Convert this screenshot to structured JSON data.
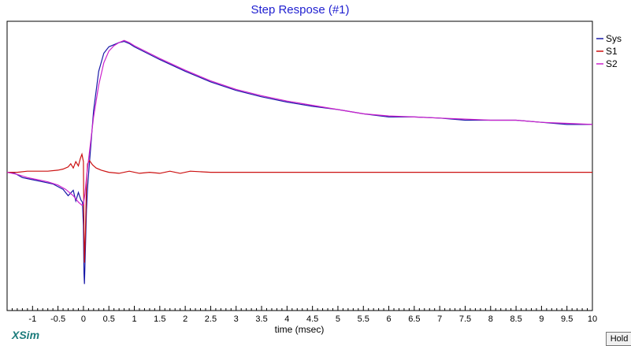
{
  "brand": "XSim",
  "hold_label": "Hold",
  "chart_data": {
    "type": "line",
    "title": "Step Respose (#1)",
    "xlabel": "time (msec)",
    "ylabel": "",
    "xlim": [
      -1.5,
      10
    ],
    "ylim": [
      -1.3,
      1.42
    ],
    "grid": false,
    "legend_position": "top-right",
    "x_ticks": [
      -1,
      -0.5,
      0,
      0.5,
      1,
      1.5,
      2,
      2.5,
      3,
      3.5,
      4,
      4.5,
      5,
      5.5,
      6,
      6.5,
      7,
      7.5,
      8,
      8.5,
      9,
      9.5,
      10
    ],
    "series": [
      {
        "name": "Sys",
        "color": "#1a1aa8",
        "x": [
          -1.5,
          -1.35,
          -1.2,
          -1.0,
          -0.8,
          -0.6,
          -0.4,
          -0.3,
          -0.2,
          -0.15,
          -0.1,
          -0.05,
          -0.02,
          0.0,
          0.01,
          0.02,
          0.04,
          0.06,
          0.08,
          0.1,
          0.15,
          0.2,
          0.3,
          0.4,
          0.5,
          0.6,
          0.7,
          0.8,
          0.9,
          1.0,
          1.25,
          1.5,
          2.0,
          2.5,
          3.0,
          3.5,
          4.0,
          4.5,
          5.0,
          5.5,
          6.0,
          6.5,
          7.0,
          7.5,
          8.0,
          8.5,
          9.0,
          9.5,
          10.0
        ],
        "y": [
          0.0,
          -0.01,
          -0.05,
          -0.07,
          -0.09,
          -0.11,
          -0.16,
          -0.22,
          -0.17,
          -0.27,
          -0.19,
          -0.26,
          -0.28,
          -0.5,
          -0.95,
          -1.05,
          -0.7,
          -0.35,
          -0.15,
          -0.02,
          0.28,
          0.58,
          0.95,
          1.12,
          1.18,
          1.2,
          1.22,
          1.23,
          1.21,
          1.18,
          1.12,
          1.06,
          0.95,
          0.85,
          0.77,
          0.71,
          0.66,
          0.62,
          0.59,
          0.55,
          0.52,
          0.52,
          0.51,
          0.49,
          0.49,
          0.49,
          0.47,
          0.45,
          0.45
        ]
      },
      {
        "name": "S1",
        "color": "#cc1111",
        "x": [
          -1.5,
          -1.3,
          -1.1,
          -0.9,
          -0.7,
          -0.5,
          -0.4,
          -0.3,
          -0.25,
          -0.2,
          -0.15,
          -0.1,
          -0.06,
          -0.03,
          0.0,
          0.01,
          0.02,
          0.04,
          0.06,
          0.08,
          0.12,
          0.18,
          0.25,
          0.35,
          0.5,
          0.7,
          0.9,
          1.1,
          1.3,
          1.5,
          1.7,
          1.9,
          2.1,
          2.5,
          3.0,
          4.0,
          5.0,
          6.0,
          7.0,
          8.0,
          9.0,
          10.0
        ],
        "y": [
          0.0,
          0.0,
          0.01,
          0.01,
          0.01,
          0.02,
          0.03,
          0.05,
          0.08,
          0.04,
          0.1,
          0.06,
          0.13,
          0.17,
          0.1,
          -0.55,
          -0.85,
          -0.55,
          -0.1,
          0.08,
          0.11,
          0.07,
          0.04,
          0.02,
          0.0,
          -0.01,
          0.01,
          -0.01,
          0.0,
          -0.01,
          0.01,
          -0.01,
          0.01,
          0.0,
          0.0,
          0.0,
          0.0,
          0.0,
          0.0,
          0.0,
          0.0,
          0.0
        ]
      },
      {
        "name": "S2",
        "color": "#cc22cc",
        "x": [
          -1.5,
          -1.3,
          -1.1,
          -0.9,
          -0.7,
          -0.5,
          -0.35,
          -0.2,
          -0.1,
          -0.03,
          0.0,
          0.03,
          0.06,
          0.1,
          0.15,
          0.2,
          0.3,
          0.4,
          0.5,
          0.6,
          0.7,
          0.8,
          0.9,
          1.0,
          1.25,
          1.5,
          2.0,
          2.5,
          3.0,
          3.5,
          4.0,
          4.5,
          5.0,
          5.5,
          6.0,
          6.5,
          7.0,
          7.5,
          8.0,
          8.5,
          9.0,
          9.5,
          10.0
        ],
        "y": [
          0.0,
          -0.02,
          -0.05,
          -0.07,
          -0.09,
          -0.12,
          -0.16,
          -0.22,
          -0.28,
          -0.31,
          -0.3,
          -0.2,
          -0.05,
          0.12,
          0.32,
          0.52,
          0.82,
          1.03,
          1.14,
          1.19,
          1.22,
          1.24,
          1.22,
          1.19,
          1.13,
          1.07,
          0.96,
          0.86,
          0.78,
          0.72,
          0.67,
          0.63,
          0.59,
          0.55,
          0.53,
          0.52,
          0.51,
          0.5,
          0.49,
          0.49,
          0.47,
          0.46,
          0.45
        ]
      }
    ]
  }
}
